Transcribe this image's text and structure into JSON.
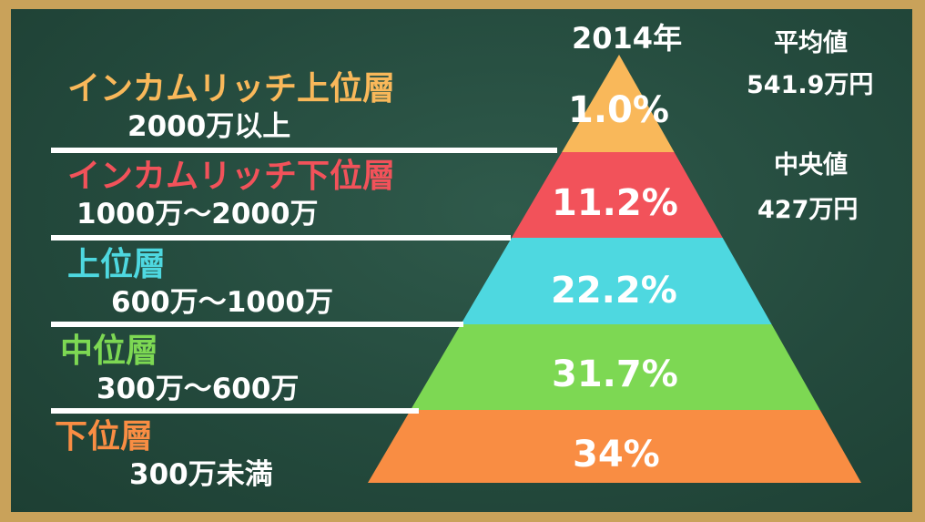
{
  "year": "2014年",
  "stats": {
    "mean_label": "平均値",
    "mean_value": "541.9万円",
    "median_label": "中央値",
    "median_value": "427万円"
  },
  "colors": {
    "upper_income_rich": "#f9b85a",
    "lower_income_rich": "#f2525a",
    "upper": "#4ed8e0",
    "middle": "#7dd853",
    "lower": "#f98d43",
    "board": "#244a3d",
    "frame": "#c9a25a"
  },
  "chart_data": {
    "type": "pyramid",
    "title": "2014年",
    "tiers": [
      {
        "name": "インカムリッチ上位層",
        "range": "2000万以上",
        "percent": 1.0,
        "label": "1.0%"
      },
      {
        "name": "インカムリッチ下位層",
        "range": "1000万～2000万",
        "percent": 11.2,
        "label": "11.2%"
      },
      {
        "name": "上位層",
        "range": "600万～1000万",
        "percent": 22.2,
        "label": "22.2%"
      },
      {
        "name": "中位層",
        "range": "300万～600万",
        "percent": 31.7,
        "label": "31.7%"
      },
      {
        "name": "下位層",
        "range": "300万未満",
        "percent": 34,
        "label": "34%"
      }
    ]
  }
}
